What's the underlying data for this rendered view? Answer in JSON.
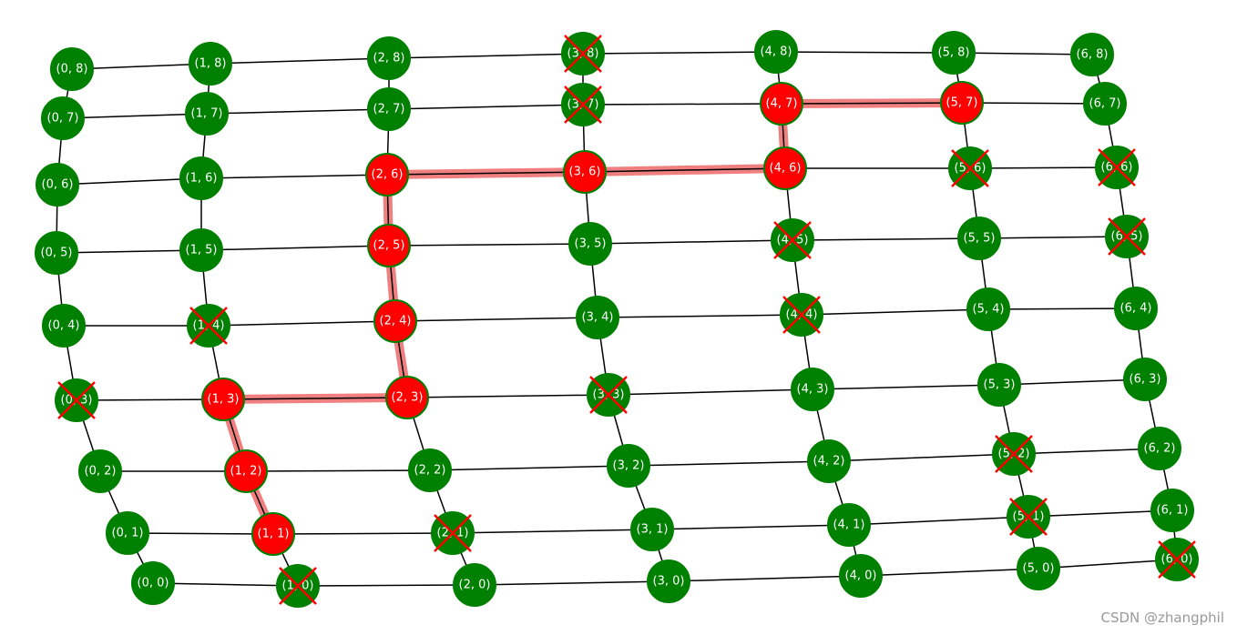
{
  "graph": {
    "node_colors": {
      "open": "#008000",
      "path": "#ff0000"
    },
    "edge_color": "#000000",
    "path_edge_color": "#f08080",
    "blocked_mark_color": "#ff0000",
    "nodes": [
      {
        "label": "(0, 0)",
        "state": "open"
      },
      {
        "label": "(0, 1)",
        "state": "open"
      },
      {
        "label": "(0, 2)",
        "state": "open"
      },
      {
        "label": "(0, 3)",
        "state": "open",
        "blocked": true
      },
      {
        "label": "(0, 4)",
        "state": "open"
      },
      {
        "label": "(0, 5)",
        "state": "open"
      },
      {
        "label": "(0, 6)",
        "state": "open"
      },
      {
        "label": "(0, 7)",
        "state": "open"
      },
      {
        "label": "(0, 8)",
        "state": "open"
      },
      {
        "label": "(1, 0)",
        "state": "open",
        "blocked": true
      },
      {
        "label": "(1, 1)",
        "state": "path"
      },
      {
        "label": "(1, 2)",
        "state": "path"
      },
      {
        "label": "(1, 3)",
        "state": "path"
      },
      {
        "label": "(1, 4)",
        "state": "open",
        "blocked": true
      },
      {
        "label": "(1, 5)",
        "state": "open"
      },
      {
        "label": "(1, 6)",
        "state": "open"
      },
      {
        "label": "(1, 7)",
        "state": "open"
      },
      {
        "label": "(1, 8)",
        "state": "open"
      },
      {
        "label": "(2, 0)",
        "state": "open"
      },
      {
        "label": "(2, 1)",
        "state": "open",
        "blocked": true
      },
      {
        "label": "(2, 2)",
        "state": "open"
      },
      {
        "label": "(2, 3)",
        "state": "path"
      },
      {
        "label": "(2, 4)",
        "state": "path"
      },
      {
        "label": "(2, 5)",
        "state": "path"
      },
      {
        "label": "(2, 6)",
        "state": "path"
      },
      {
        "label": "(2, 7)",
        "state": "open"
      },
      {
        "label": "(2, 8)",
        "state": "open"
      },
      {
        "label": "(3, 0)",
        "state": "open"
      },
      {
        "label": "(3, 1)",
        "state": "open"
      },
      {
        "label": "(3, 2)",
        "state": "open"
      },
      {
        "label": "(3, 3)",
        "state": "open",
        "blocked": true
      },
      {
        "label": "(3, 4)",
        "state": "open"
      },
      {
        "label": "(3, 5)",
        "state": "open"
      },
      {
        "label": "(3, 6)",
        "state": "path"
      },
      {
        "label": "(3, 7)",
        "state": "open",
        "blocked": true
      },
      {
        "label": "(3, 8)",
        "state": "open",
        "blocked": true
      },
      {
        "label": "(4, 0)",
        "state": "open"
      },
      {
        "label": "(4, 1)",
        "state": "open"
      },
      {
        "label": "(4, 2)",
        "state": "open"
      },
      {
        "label": "(4, 3)",
        "state": "open"
      },
      {
        "label": "(4, 4)",
        "state": "open",
        "blocked": true
      },
      {
        "label": "(4, 5)",
        "state": "open",
        "blocked": true
      },
      {
        "label": "(4, 6)",
        "state": "path"
      },
      {
        "label": "(4, 7)",
        "state": "path"
      },
      {
        "label": "(4, 8)",
        "state": "open"
      },
      {
        "label": "(5, 0)",
        "state": "open"
      },
      {
        "label": "(5, 1)",
        "state": "open",
        "blocked": true
      },
      {
        "label": "(5, 2)",
        "state": "open",
        "blocked": true
      },
      {
        "label": "(5, 3)",
        "state": "open"
      },
      {
        "label": "(5, 4)",
        "state": "open"
      },
      {
        "label": "(5, 5)",
        "state": "open"
      },
      {
        "label": "(5, 6)",
        "state": "open",
        "blocked": true
      },
      {
        "label": "(5, 7)",
        "state": "path"
      },
      {
        "label": "(5, 8)",
        "state": "open"
      },
      {
        "label": "(6, 0)",
        "state": "open",
        "blocked": true
      },
      {
        "label": "(6, 1)",
        "state": "open"
      },
      {
        "label": "(6, 2)",
        "state": "open"
      },
      {
        "label": "(6, 3)",
        "state": "open"
      },
      {
        "label": "(6, 4)",
        "state": "open"
      },
      {
        "label": "(6, 5)",
        "state": "open",
        "blocked": true
      },
      {
        "label": "(6, 6)",
        "state": "open",
        "blocked": true
      },
      {
        "label": "(6, 7)",
        "state": "open"
      },
      {
        "label": "(6, 8)",
        "state": "open"
      }
    ]
  },
  "watermark": "CSDN @zhangphil"
}
